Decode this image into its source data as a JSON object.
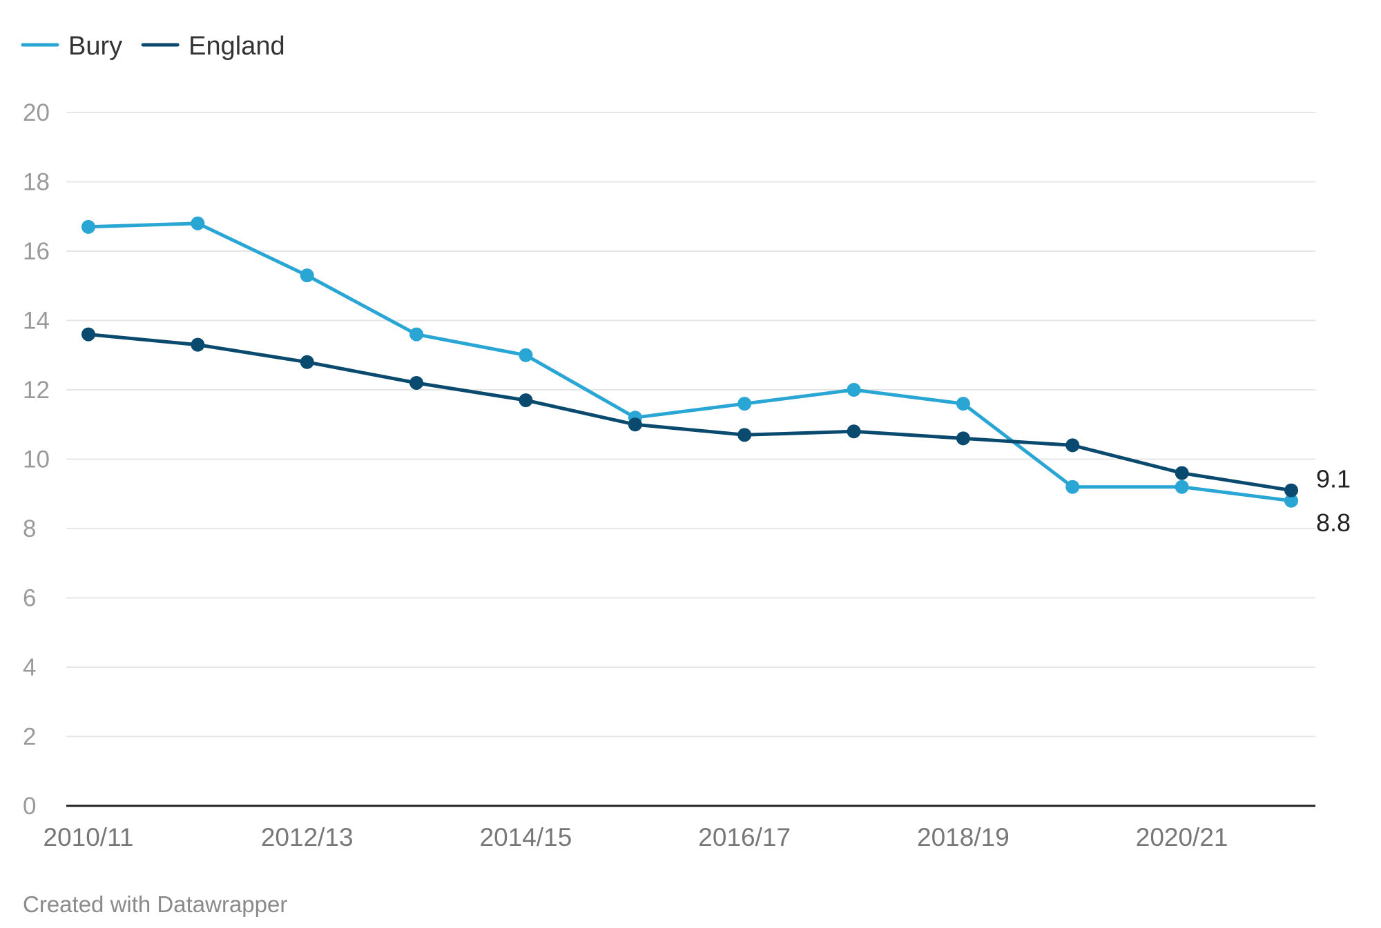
{
  "footer": "Created with Datawrapper",
  "chart_data": {
    "type": "line",
    "x": [
      "2010/11",
      "2011/12",
      "2012/13",
      "2013/14",
      "2014/15",
      "2015/16",
      "2016/17",
      "2017/18",
      "2018/19",
      "2019/20",
      "2020/21",
      "2021/22"
    ],
    "x_tick_labels": [
      "2010/11",
      "2012/13",
      "2014/15",
      "2016/17",
      "2018/19",
      "2020/21"
    ],
    "ylim": [
      0,
      20
    ],
    "y_ticks": [
      0,
      2,
      4,
      6,
      8,
      10,
      12,
      14,
      16,
      18,
      20
    ],
    "grid": true,
    "legend_position": "top-left",
    "series": [
      {
        "name": "Bury",
        "color": "#2aa6d5",
        "values": [
          16.7,
          16.8,
          15.3,
          13.6,
          13.0,
          11.2,
          11.6,
          12.0,
          11.6,
          9.2,
          9.2,
          8.8
        ],
        "end_label": "8.8"
      },
      {
        "name": "England",
        "color": "#0b4a6f",
        "values": [
          13.6,
          13.3,
          12.8,
          12.2,
          11.7,
          11.0,
          10.7,
          10.8,
          10.6,
          10.4,
          9.6,
          9.1
        ],
        "end_label": "9.1"
      }
    ]
  }
}
